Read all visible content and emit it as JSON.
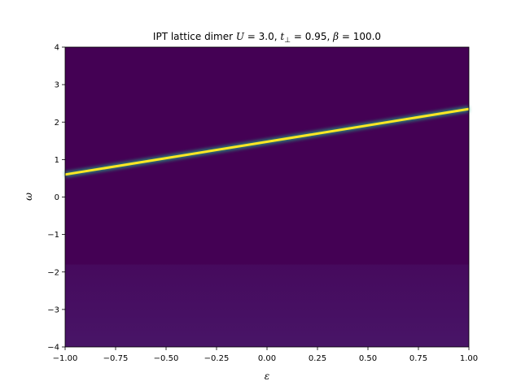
{
  "chart_data": {
    "type": "heatmap",
    "title": {
      "prefix": "IPT lattice dimer ",
      "u_symbol": "U",
      "u_text": " = 3.0, ",
      "t_symbol": "t",
      "t_sub": "⊥",
      "t_text": " = 0.95, ",
      "beta_symbol": "β",
      "beta_text": " = 100.0"
    },
    "xlabel": "ε",
    "ylabel": "ω",
    "xlim": [
      -1.0,
      1.0
    ],
    "ylim": [
      -4,
      4
    ],
    "xticks": [
      -1.0,
      -0.75,
      -0.5,
      -0.25,
      0.0,
      0.25,
      0.5,
      0.75,
      1.0
    ],
    "xtick_labels": [
      "−1.00",
      "−0.75",
      "−0.50",
      "−0.25",
      "0.00",
      "0.25",
      "0.50",
      "0.75",
      "1.00"
    ],
    "yticks": [
      -4,
      -3,
      -2,
      -1,
      0,
      1,
      2,
      3,
      4
    ],
    "ytick_labels": [
      "−4",
      "−3",
      "−2",
      "−1",
      "0",
      "1",
      "2",
      "3",
      "4"
    ],
    "colormap": "viridis",
    "background_color": "#440154",
    "lower_band_color": "#460a5d",
    "lower_band_top": -1.8,
    "peak_line": {
      "x": [
        -1.0,
        1.0
      ],
      "y": [
        0.6,
        2.35
      ],
      "core_color": "#fde725",
      "halo_color": "#22a884"
    }
  }
}
